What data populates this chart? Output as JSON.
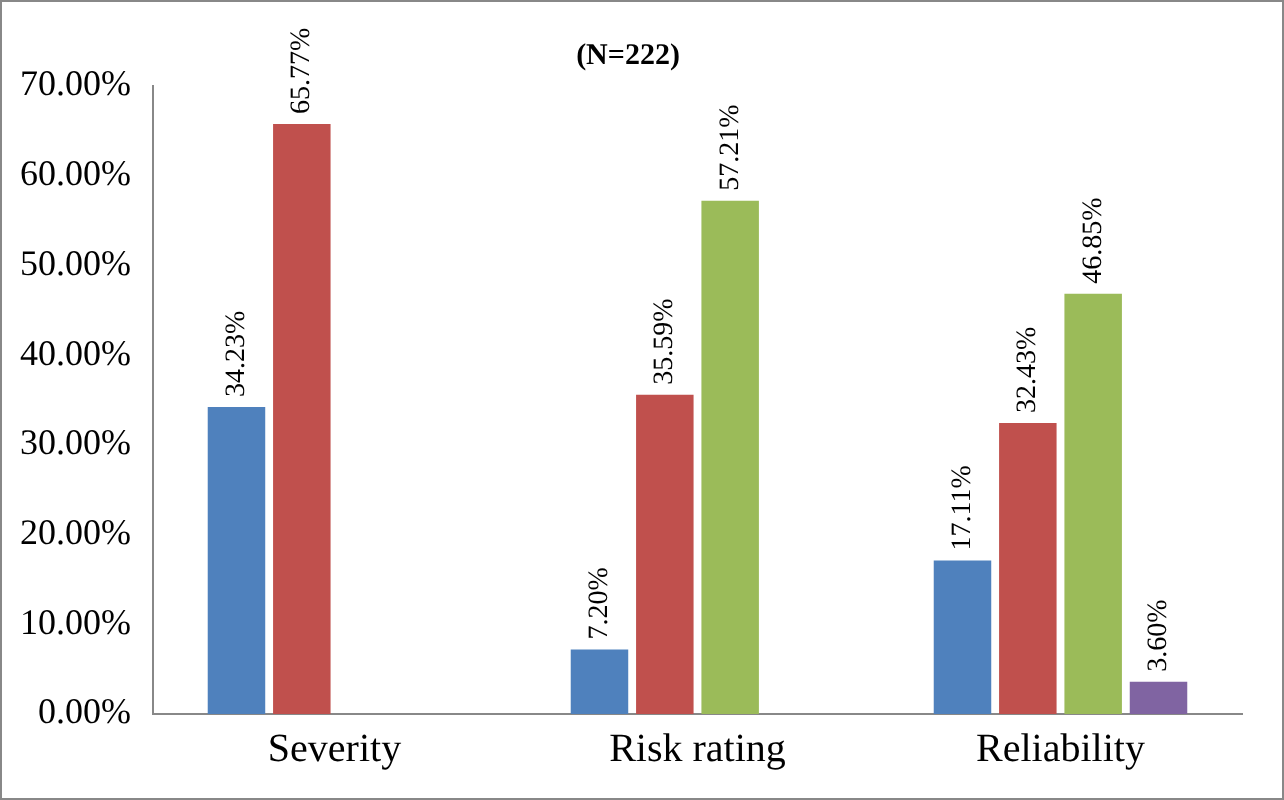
{
  "chart_data": {
    "type": "bar",
    "title": "(N=222)",
    "categories": [
      "Severity",
      "Risk rating",
      "Reliability"
    ],
    "series": [
      {
        "color": "#4f81bd",
        "values": [
          34.23,
          7.2,
          17.11
        ],
        "value_labels": [
          "34.23%",
          "7.20%",
          "17.11%"
        ]
      },
      {
        "color": "#c0504d",
        "values": [
          65.77,
          35.59,
          32.43
        ],
        "value_labels": [
          "65.77%",
          "35.59%",
          "32.43%"
        ]
      },
      {
        "color": "#9bbb59",
        "values": [
          null,
          57.21,
          46.85
        ],
        "value_labels": [
          null,
          "57.21%",
          "46.85%"
        ]
      },
      {
        "color": "#8064a2",
        "values": [
          null,
          null,
          3.6
        ],
        "value_labels": [
          null,
          null,
          "3.60%"
        ]
      }
    ],
    "ylim": [
      0,
      70
    ],
    "yticks": [
      {
        "value": 0,
        "label": "0.00%"
      },
      {
        "value": 10,
        "label": "10.00%"
      },
      {
        "value": 20,
        "label": "20.00%"
      },
      {
        "value": 30,
        "label": "30.00%"
      },
      {
        "value": 40,
        "label": "40.00%"
      },
      {
        "value": 50,
        "label": "50.00%"
      },
      {
        "value": 60,
        "label": "60.00%"
      },
      {
        "value": 70,
        "label": "70.00%"
      }
    ],
    "grid": false,
    "legend": false
  }
}
